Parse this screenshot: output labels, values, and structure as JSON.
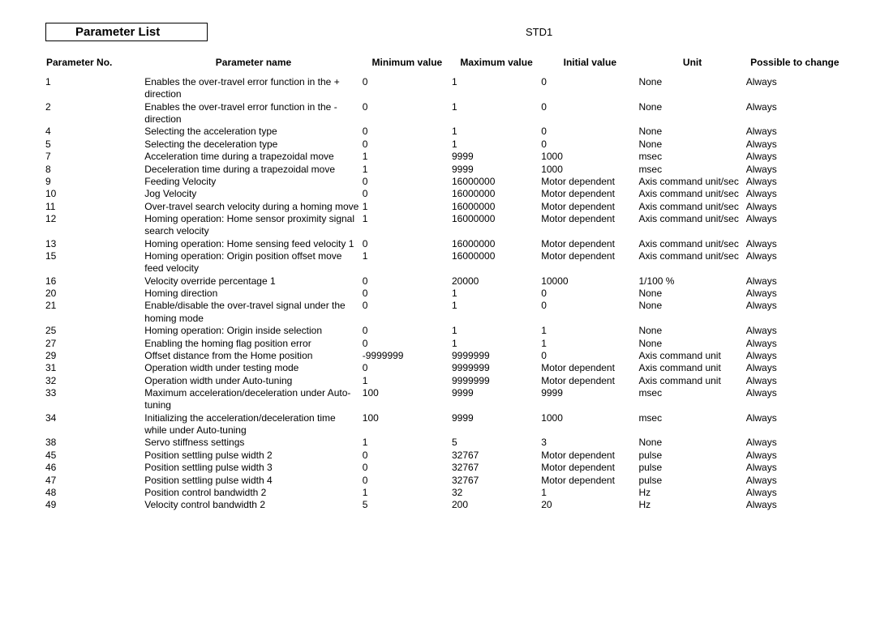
{
  "title": "Parameter List",
  "std": "STD1",
  "columns": [
    "Parameter No.",
    "Parameter name",
    "Minimum value",
    "Maximum value",
    "Initial value",
    "Unit",
    "Possible to change"
  ],
  "rows": [
    {
      "no": "1",
      "name": "Enables the over-travel error function in the + direction",
      "min": "0",
      "max": "1",
      "init": "0",
      "unit": "None",
      "poss": "Always"
    },
    {
      "no": "2",
      "name": "Enables the over-travel error function in the - direction",
      "min": "0",
      "max": "1",
      "init": "0",
      "unit": "None",
      "poss": "Always"
    },
    {
      "no": "4",
      "name": "Selecting the acceleration type",
      "min": "0",
      "max": "1",
      "init": "0",
      "unit": "None",
      "poss": "Always"
    },
    {
      "no": "5",
      "name": "Selecting the deceleration type",
      "min": "0",
      "max": "1",
      "init": "0",
      "unit": "None",
      "poss": "Always"
    },
    {
      "no": "7",
      "name": "Acceleration time during a trapezoidal move",
      "min": "1",
      "max": "9999",
      "init": "1000",
      "unit": "msec",
      "poss": "Always"
    },
    {
      "no": "8",
      "name": "Deceleration time during a trapezoidal move",
      "min": "1",
      "max": "9999",
      "init": "1000",
      "unit": "msec",
      "poss": "Always"
    },
    {
      "no": "9",
      "name": "Feeding Velocity",
      "min": "0",
      "max": "16000000",
      "init": "Motor dependent",
      "unit": "Axis command unit/sec",
      "poss": "Always"
    },
    {
      "no": "10",
      "name": "Jog Velocity",
      "min": "0",
      "max": "16000000",
      "init": "Motor dependent",
      "unit": "Axis command unit/sec",
      "poss": "Always"
    },
    {
      "no": "11",
      "name": "Over-travel search velocity during a homing move",
      "min": "1",
      "max": "16000000",
      "init": "Motor dependent",
      "unit": "Axis command unit/sec",
      "poss": "Always"
    },
    {
      "no": "12",
      "name": "Homing operation: Home sensor proximity signal search velocity",
      "min": "1",
      "max": "16000000",
      "init": "Motor dependent",
      "unit": "Axis command unit/sec",
      "poss": "Always"
    },
    {
      "no": "13",
      "name": "Homing operation: Home sensing feed velocity 1",
      "min": "0",
      "max": "16000000",
      "init": "Motor dependent",
      "unit": "Axis command unit/sec",
      "poss": "Always"
    },
    {
      "no": "15",
      "name": "Homing operation: Origin position offset move feed velocity",
      "min": "1",
      "max": "16000000",
      "init": "Motor dependent",
      "unit": "Axis command unit/sec",
      "poss": "Always"
    },
    {
      "no": "16",
      "name": "Velocity override percentage 1",
      "min": "0",
      "max": "20000",
      "init": "10000",
      "unit": "1/100 %",
      "poss": "Always"
    },
    {
      "no": "20",
      "name": "Homing direction",
      "min": "0",
      "max": "1",
      "init": "0",
      "unit": "None",
      "poss": "Always"
    },
    {
      "no": "21",
      "name": "Enable/disable the over-travel signal under the homing mode",
      "min": "0",
      "max": "1",
      "init": "0",
      "unit": "None",
      "poss": "Always"
    },
    {
      "no": "25",
      "name": "Homing operation: Origin inside selection",
      "min": "0",
      "max": "1",
      "init": "1",
      "unit": "None",
      "poss": "Always"
    },
    {
      "no": "27",
      "name": "Enabling the homing flag position error",
      "min": "0",
      "max": "1",
      "init": "1",
      "unit": "None",
      "poss": "Always"
    },
    {
      "no": "29",
      "name": "Offset distance from the Home position",
      "min": "-9999999",
      "max": "9999999",
      "init": "0",
      "unit": "Axis command unit",
      "poss": "Always"
    },
    {
      "no": "31",
      "name": "Operation width under testing mode",
      "min": "0",
      "max": "9999999",
      "init": "Motor dependent",
      "unit": "Axis command unit",
      "poss": "Always"
    },
    {
      "no": "32",
      "name": "Operation width under Auto-tuning",
      "min": "1",
      "max": "9999999",
      "init": "Motor dependent",
      "unit": "Axis command unit",
      "poss": "Always"
    },
    {
      "no": "33",
      "name": "Maximum acceleration/deceleration under Auto-tuning",
      "min": "100",
      "max": "9999",
      "init": "9999",
      "unit": "msec",
      "poss": "Always"
    },
    {
      "no": "34",
      "name": "Initializing the acceleration/deceleration time while under Auto-tuning",
      "min": "100",
      "max": "9999",
      "init": "1000",
      "unit": "msec",
      "poss": "Always"
    },
    {
      "no": "38",
      "name": "Servo stiffness settings",
      "min": "1",
      "max": "5",
      "init": "3",
      "unit": "None",
      "poss": "Always"
    },
    {
      "no": "45",
      "name": "Position settling pulse width 2",
      "min": "0",
      "max": "32767",
      "init": "Motor dependent",
      "unit": "pulse",
      "poss": "Always"
    },
    {
      "no": "46",
      "name": "Position settling pulse width 3",
      "min": "0",
      "max": "32767",
      "init": "Motor dependent",
      "unit": "pulse",
      "poss": "Always"
    },
    {
      "no": "47",
      "name": "Position settling pulse width 4",
      "min": "0",
      "max": "32767",
      "init": "Motor dependent",
      "unit": "pulse",
      "poss": "Always"
    },
    {
      "no": "48",
      "name": "Position control bandwidth 2",
      "min": "1",
      "max": "32",
      "init": "1",
      "unit": "Hz",
      "poss": "Always"
    },
    {
      "no": "49",
      "name": "Velocity control bandwidth 2",
      "min": "5",
      "max": "200",
      "init": "20",
      "unit": "Hz",
      "poss": "Always"
    }
  ]
}
